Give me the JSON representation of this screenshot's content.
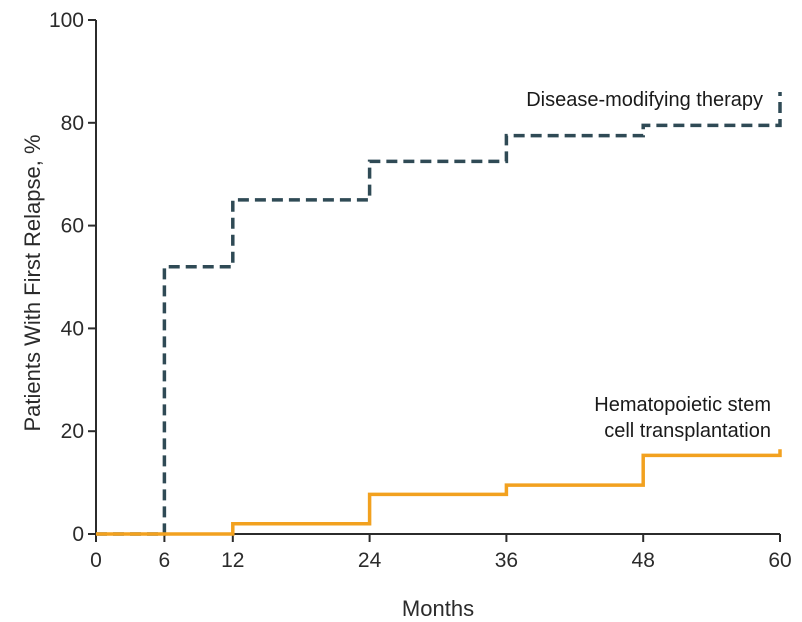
{
  "chart_data": {
    "type": "line",
    "step": true,
    "xlabel": "Months",
    "ylabel": "Patients With First Relapse, %",
    "xlim": [
      0,
      60
    ],
    "ylim": [
      0,
      100
    ],
    "x_ticks": [
      0,
      6,
      12,
      24,
      36,
      48,
      60
    ],
    "y_ticks": [
      0,
      20,
      40,
      60,
      80,
      100
    ],
    "grid": false,
    "series": [
      {
        "name": "Disease-modifying therapy",
        "label_lines": [
          "Disease-modifying therapy"
        ],
        "style": "dashed",
        "color": "#2f4a55",
        "points": [
          {
            "x": 0,
            "y": 0
          },
          {
            "x": 6,
            "y": 52
          },
          {
            "x": 12,
            "y": 65
          },
          {
            "x": 24,
            "y": 72.5
          },
          {
            "x": 36,
            "y": 77.5
          },
          {
            "x": 48,
            "y": 79.5
          },
          {
            "x": 60,
            "y": 86
          }
        ]
      },
      {
        "name": "Hematopoietic stem cell transplantation",
        "label_lines": [
          "Hematopoietic stem",
          "cell transplantation"
        ],
        "style": "solid",
        "color": "#f2a11f",
        "points": [
          {
            "x": 0,
            "y": 0
          },
          {
            "x": 12,
            "y": 2
          },
          {
            "x": 24,
            "y": 7.7
          },
          {
            "x": 36,
            "y": 9.5
          },
          {
            "x": 48,
            "y": 15.3
          },
          {
            "x": 60,
            "y": 16.5
          }
        ]
      }
    ]
  }
}
